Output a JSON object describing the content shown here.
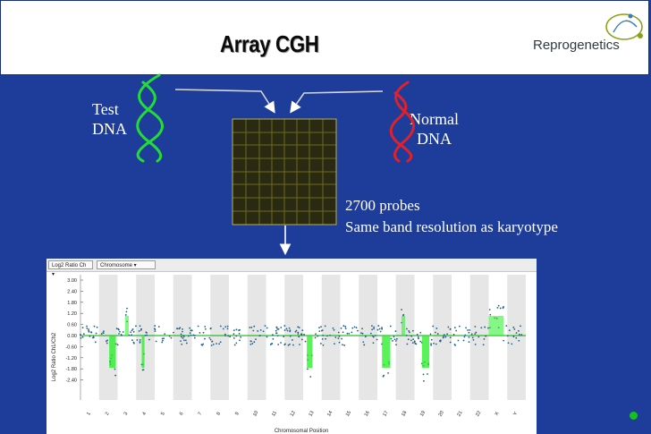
{
  "slide": {
    "title": "Array CGH",
    "logo_text": "Reprogenetics",
    "test_label_line1": "Test",
    "test_label_line2": "DNA",
    "normal_label_line1": "Normal",
    "normal_label_line2": "DNA",
    "probes_line1": "2700 probes",
    "probes_line2": "Same band resolution as karyotype"
  },
  "plot": {
    "toolbar": {
      "ratio_select": "Log2 Ratio Ch",
      "chromosome_select": "Chromosome"
    },
    "ylabel": "Log2 Ratio Ch1/Ch2",
    "xlabel": "Chromosomal Position",
    "yticks": [
      "3.00",
      "2.40",
      "1.80",
      "1.20",
      "0.60",
      "0.00",
      "-0.60",
      "-1.20",
      "-1.80",
      "-2.40"
    ],
    "xticks": [
      "1",
      "2",
      "3",
      "4",
      "5",
      "6",
      "7",
      "8",
      "9",
      "10",
      "11",
      "12",
      "13",
      "14",
      "15",
      "16",
      "17",
      "18",
      "19",
      "20",
      "21",
      "22",
      "X",
      "Y"
    ]
  },
  "colors": {
    "background": "#1e3d9a",
    "test_dna": "#22dd33",
    "normal_dna": "#e0202a",
    "trend": "#22ee22",
    "points": "#1f5f8a"
  }
}
